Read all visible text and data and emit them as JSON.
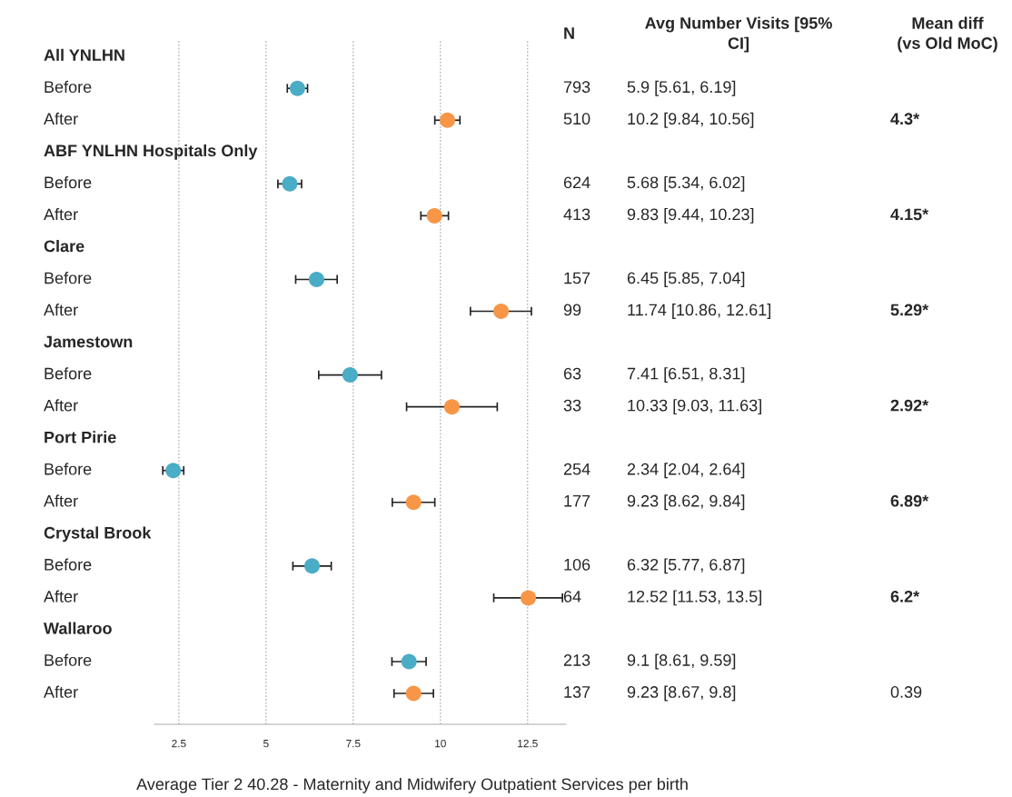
{
  "chart_data": {
    "type": "scatter",
    "orientation": "horizontal",
    "xlabel": "Average Tier 2 40.28 - Maternity and Midwifery Outpatient Services per birth",
    "categories": [
      "All YNLHN",
      "Before",
      "After",
      "ABF YNLHN Hospitals Only",
      "Before",
      "After",
      "Clare",
      "Before",
      "After",
      "Jamestown",
      "Before",
      "After",
      "Port Pirie",
      "Before",
      "After",
      "Crystal Brook",
      "Before",
      "After",
      "Wallaroo",
      "Before",
      "After"
    ],
    "series": [
      {
        "color": "#4bacc6",
        "values": [
          null,
          5.9,
          null,
          null,
          5.68,
          null,
          null,
          6.45,
          null,
          null,
          7.41,
          null,
          null,
          2.34,
          null,
          null,
          6.32,
          null,
          null,
          9.1,
          null
        ],
        "errors": [
          null,
          [
            5.61,
            6.19
          ],
          null,
          null,
          [
            5.34,
            6.02
          ],
          null,
          null,
          [
            5.85,
            7.04
          ],
          null,
          null,
          [
            6.51,
            8.31
          ],
          null,
          null,
          [
            2.04,
            2.64
          ],
          null,
          null,
          [
            5.77,
            6.87
          ],
          null,
          null,
          [
            8.61,
            9.59
          ],
          null
        ]
      },
      {
        "color": "#f79646",
        "values": [
          null,
          null,
          10.2,
          null,
          null,
          9.83,
          null,
          null,
          11.74,
          null,
          null,
          10.33,
          null,
          null,
          9.23,
          null,
          null,
          12.52,
          null,
          null,
          9.23
        ],
        "errors": [
          null,
          null,
          [
            9.84,
            10.56
          ],
          null,
          null,
          [
            9.44,
            10.23
          ],
          null,
          null,
          [
            10.86,
            12.61
          ],
          null,
          null,
          [
            9.03,
            11.63
          ],
          null,
          null,
          [
            8.62,
            9.84
          ],
          null,
          null,
          [
            11.53,
            13.5
          ],
          null,
          null,
          [
            8.67,
            9.8
          ]
        ]
      }
    ],
    "xlim": [
      1.8,
      13.6
    ],
    "xticks": [
      2.5,
      5,
      7.5,
      10,
      12.5
    ],
    "grid": "x",
    "marker": "circle",
    "legend": false,
    "annotations": [
      "N",
      "Avg Number Visits [95%\nCI]",
      "Mean diff\n(vs Old MoC)",
      "793",
      "510",
      "624",
      "413",
      "157",
      "99",
      "63",
      "33",
      "254",
      "177",
      "106",
      "64",
      "213",
      "137",
      "5.9 [5.61, 6.19]",
      "10.2 [9.84, 10.56]",
      "5.68 [5.34, 6.02]",
      "9.83 [9.44, 10.23]",
      "6.45 [5.85, 7.04]",
      "11.74 [10.86, 12.61]",
      "7.41 [6.51, 8.31]",
      "10.33 [9.03, 11.63]",
      "2.34 [2.04, 2.64]",
      "9.23 [8.62, 9.84]",
      "6.32 [5.77, 6.87]",
      "12.52 [11.53, 13.5]",
      "9.1 [8.61, 9.59]",
      "9.23 [8.67, 9.8]",
      "4.3*",
      "4.15*",
      "5.29*",
      "2.92*",
      "6.89*",
      "6.2*",
      "0.39"
    ]
  }
}
